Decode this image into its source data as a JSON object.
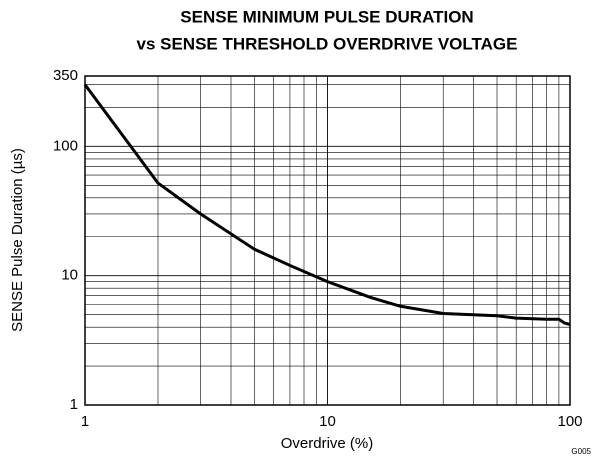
{
  "chart_data": {
    "type": "line",
    "title": "SENSE MINIMUM PULSE DURATION",
    "subtitle": "vs SENSE THRESHOLD OVERDRIVE VOLTAGE",
    "x_label": "Overdrive (%)",
    "y_label": "SENSE Pulse Duration (µs)",
    "figure_id": "G005",
    "xscale": "log",
    "yscale": "log",
    "grid": true,
    "xlim": [
      1,
      100
    ],
    "ylim": [
      1,
      350
    ],
    "xticks": [
      1,
      10,
      100
    ],
    "yticks": [
      1,
      10,
      100,
      350
    ],
    "minor_xticks": [
      2,
      3,
      4,
      5,
      6,
      7,
      8,
      9,
      20,
      30,
      40,
      50,
      60,
      70,
      80,
      90
    ],
    "minor_yticks": [
      2,
      3,
      4,
      5,
      6,
      7,
      8,
      9,
      20,
      30,
      40,
      50,
      60,
      70,
      80,
      90,
      200,
      300
    ],
    "series": [
      {
        "color": "#000000",
        "x": [
          1,
          2,
          3,
          5,
          7,
          10,
          15,
          20,
          30,
          50,
          60,
          80,
          90,
          95,
          100
        ],
        "values": [
          300,
          52,
          30,
          16,
          12,
          9,
          6.8,
          5.8,
          5.1,
          4.9,
          4.7,
          4.6,
          4.6,
          4.3,
          4.2
        ]
      }
    ]
  }
}
